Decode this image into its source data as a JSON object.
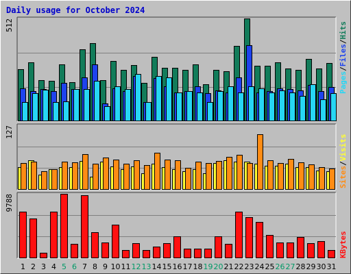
{
  "title": "Daily usage for October 2024",
  "colors": {
    "background": "#c0c0c0",
    "plot_background": "#bebebe",
    "hits": "#127c5a",
    "files": "#1e43ee",
    "pages": "#27d6f4",
    "visits": "#ffff33",
    "sites": "#ff8c14",
    "kbytes": "#ff1010",
    "title": "#0000cc",
    "weekend_label": "#009966"
  },
  "chart_data": [
    {
      "type": "bar",
      "panel": "top",
      "ymax_label": "512",
      "right_label": [
        "Pages",
        "/",
        "Files",
        "/",
        "Hits"
      ],
      "categories": [
        "1",
        "2",
        "3",
        "4",
        "5",
        "6",
        "7",
        "8",
        "9",
        "10",
        "11",
        "12",
        "13",
        "14",
        "15",
        "16",
        "17",
        "18",
        "19",
        "20",
        "21",
        "22",
        "23",
        "24",
        "25",
        "26",
        "27",
        "28",
        "29",
        "30",
        "31"
      ],
      "series": [
        {
          "name": "Hits",
          "values": [
            260,
            293,
            205,
            200,
            285,
            195,
            358,
            390,
            205,
            300,
            255,
            280,
            190,
            320,
            265,
            265,
            257,
            282,
            185,
            255,
            250,
            377,
            512,
            275,
            275,
            293,
            263,
            257,
            310,
            262,
            290
          ]
        },
        {
          "name": "Files",
          "values": [
            165,
            150,
            160,
            150,
            190,
            160,
            220,
            282,
            90,
            165,
            150,
            225,
            95,
            215,
            175,
            145,
            150,
            175,
            140,
            155,
            145,
            220,
            380,
            145,
            150,
            165,
            160,
            155,
            180,
            150,
            170
          ]
        },
        {
          "name": "Pages",
          "values": [
            95,
            140,
            158,
            95,
            100,
            160,
            162,
            200,
            75,
            175,
            160,
            235,
            95,
            225,
            220,
            145,
            150,
            145,
            95,
            150,
            175,
            145,
            175,
            165,
            145,
            155,
            145,
            125,
            185,
            110,
            140
          ]
        }
      ]
    },
    {
      "type": "bar",
      "panel": "middle",
      "ymax_label": "127",
      "right_label": [
        "Sites",
        "/",
        "Visits"
      ],
      "categories": [
        "1",
        "2",
        "3",
        "4",
        "5",
        "6",
        "7",
        "8",
        "9",
        "10",
        "11",
        "12",
        "13",
        "14",
        "15",
        "16",
        "17",
        "18",
        "19",
        "20",
        "21",
        "22",
        "23",
        "24",
        "25",
        "26",
        "27",
        "28",
        "29",
        "30",
        "31"
      ],
      "series": [
        {
          "name": "Visits",
          "values": [
            45,
            58,
            30,
            40,
            45,
            45,
            57,
            25,
            55,
            46,
            40,
            46,
            32,
            52,
            45,
            40,
            37,
            40,
            32,
            53,
            58,
            56,
            55,
            52,
            47,
            47,
            52,
            45,
            45,
            38,
            37
          ]
        },
        {
          "name": "Sites",
          "values": [
            53,
            56,
            37,
            41,
            56,
            54,
            70,
            52,
            64,
            60,
            52,
            58,
            48,
            73,
            60,
            58,
            43,
            55,
            53,
            57,
            65,
            69,
            53,
            110,
            58,
            53,
            61,
            54,
            50,
            45,
            42
          ]
        }
      ]
    },
    {
      "type": "bar",
      "panel": "bottom",
      "ymax_label": "9788",
      "right_label": [
        "KBytes"
      ],
      "categories": [
        "1",
        "2",
        "3",
        "4",
        "5",
        "6",
        "7",
        "8",
        "9",
        "10",
        "11",
        "12",
        "13",
        "14",
        "15",
        "16",
        "17",
        "18",
        "19",
        "20",
        "21",
        "22",
        "23",
        "24",
        "25",
        "26",
        "27",
        "28",
        "29",
        "30",
        "31"
      ],
      "series": [
        {
          "name": "KBytes",
          "values": [
            7100,
            6000,
            800,
            7100,
            9788,
            2200,
            9600,
            4000,
            2400,
            5100,
            1300,
            2300,
            1300,
            1800,
            2300,
            3300,
            1500,
            1500,
            1500,
            3300,
            2200,
            7100,
            6200,
            5500,
            3500,
            2400,
            2400,
            3200,
            2300,
            2600,
            1300
          ]
        }
      ]
    }
  ],
  "x_labels": [
    {
      "text": "1",
      "weekend": false
    },
    {
      "text": "2",
      "weekend": false
    },
    {
      "text": "3",
      "weekend": false
    },
    {
      "text": "4",
      "weekend": false
    },
    {
      "text": "5",
      "weekend": true
    },
    {
      "text": "6",
      "weekend": true
    },
    {
      "text": "7",
      "weekend": false
    },
    {
      "text": "8",
      "weekend": false
    },
    {
      "text": "9",
      "weekend": false
    },
    {
      "text": "10",
      "weekend": false
    },
    {
      "text": "11",
      "weekend": false
    },
    {
      "text": "12",
      "weekend": true
    },
    {
      "text": "13",
      "weekend": true
    },
    {
      "text": "14",
      "weekend": false
    },
    {
      "text": "15",
      "weekend": false
    },
    {
      "text": "16",
      "weekend": false
    },
    {
      "text": "17",
      "weekend": false
    },
    {
      "text": "18",
      "weekend": false
    },
    {
      "text": "19",
      "weekend": true
    },
    {
      "text": "20",
      "weekend": true
    },
    {
      "text": "21",
      "weekend": false
    },
    {
      "text": "22",
      "weekend": false
    },
    {
      "text": "23",
      "weekend": false
    },
    {
      "text": "24",
      "weekend": false
    },
    {
      "text": "25",
      "weekend": false
    },
    {
      "text": "26",
      "weekend": true
    },
    {
      "text": "27",
      "weekend": true
    },
    {
      "text": "28",
      "weekend": false
    },
    {
      "text": "29",
      "weekend": false
    },
    {
      "text": "30",
      "weekend": false
    },
    {
      "text": "31",
      "weekend": false
    }
  ]
}
